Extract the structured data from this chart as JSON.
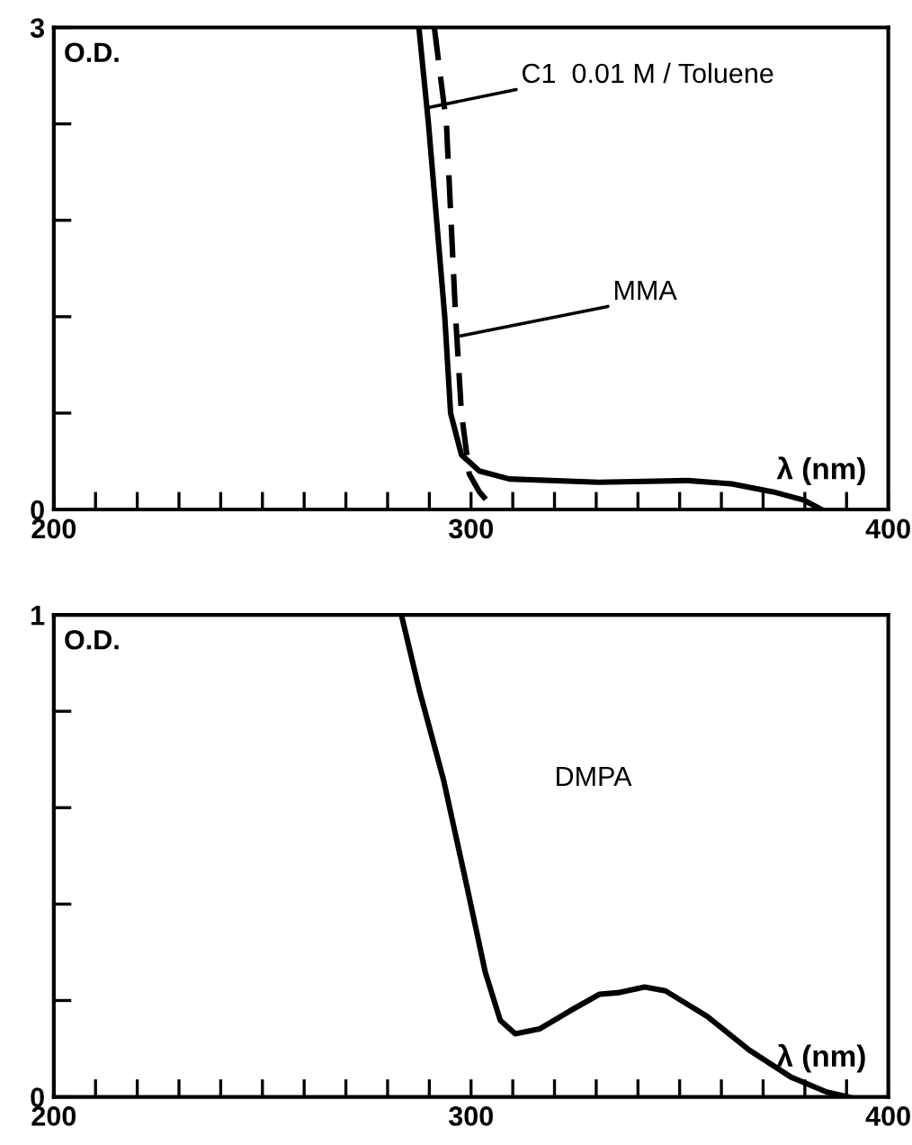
{
  "chart_data": [
    {
      "type": "line",
      "xlabel": "λ (nm)",
      "ylabel": "O.D.",
      "xlim": [
        200,
        400
      ],
      "ylim": [
        0,
        3
      ],
      "xticks": [
        200,
        {
          "value": 210,
          "label": null
        },
        {
          "value": 220,
          "label": null
        },
        {
          "value": 230,
          "label": null
        },
        {
          "value": 240,
          "label": null
        },
        {
          "value": 250,
          "label": null
        },
        {
          "value": 260,
          "label": null
        },
        {
          "value": 270,
          "label": null
        },
        {
          "value": 280,
          "label": null
        },
        {
          "value": 290,
          "label": null
        },
        300,
        {
          "value": 310,
          "label": null
        },
        {
          "value": 320,
          "label": null
        },
        {
          "value": 330,
          "label": null
        },
        {
          "value": 340,
          "label": null
        },
        {
          "value": 350,
          "label": null
        },
        {
          "value": 360,
          "label": null
        },
        {
          "value": 370,
          "label": null
        },
        {
          "value": 380,
          "label": null
        },
        {
          "value": 390,
          "label": null
        },
        400
      ],
      "yticks": [
        0,
        {
          "value": 0.6,
          "label": null
        },
        {
          "value": 1.2,
          "label": null
        },
        {
          "value": 1.8,
          "label": null
        },
        {
          "value": 2.4,
          "label": null
        },
        3
      ],
      "grid": false,
      "legend": false,
      "series": [
        {
          "color": "#000000",
          "line_style": "solid",
          "x": [
            287.5,
            289.8,
            293.7,
            295.1,
            297.7,
            302,
            309.2,
            330.6,
            352,
            362.4,
            372.4,
            379.6,
            384
          ],
          "values": [
            3,
            2.4,
            1.2,
            0.6,
            0.34,
            0.24,
            0.19,
            0.17,
            0.18,
            0.16,
            0.11,
            0.06,
            0
          ]
        },
        {
          "color": "#000000",
          "line_style": "dashed",
          "x": [
            291.2,
            294.1,
            296.3,
            297.7,
            299.6,
            302,
            305.6
          ],
          "values": [
            3,
            2.4,
            1.2,
            0.6,
            0.22,
            0.11,
            0
          ]
        }
      ],
      "annotations": [
        {
          "text": "C1  0.01 M / Toluene",
          "x": 289.5,
          "y": 2.5
        },
        {
          "text": "MMA",
          "x": 297.4,
          "y": 1.08
        }
      ]
    },
    {
      "type": "line",
      "xlabel": "λ (nm)",
      "ylabel": "O.D.",
      "xlim": [
        200,
        400
      ],
      "ylim": [
        0,
        1
      ],
      "xticks": [
        200,
        {
          "value": 210,
          "label": null
        },
        {
          "value": 220,
          "label": null
        },
        {
          "value": 230,
          "label": null
        },
        {
          "value": 240,
          "label": null
        },
        {
          "value": 250,
          "label": null
        },
        {
          "value": 260,
          "label": null
        },
        {
          "value": 270,
          "label": null
        },
        {
          "value": 280,
          "label": null
        },
        {
          "value": 290,
          "label": null
        },
        300,
        {
          "value": 310,
          "label": null
        },
        {
          "value": 320,
          "label": null
        },
        {
          "value": 330,
          "label": null
        },
        {
          "value": 340,
          "label": null
        },
        {
          "value": 350,
          "label": null
        },
        {
          "value": 360,
          "label": null
        },
        {
          "value": 370,
          "label": null
        },
        {
          "value": 380,
          "label": null
        },
        {
          "value": 390,
          "label": null
        },
        400
      ],
      "yticks": [
        0,
        {
          "value": 0.2,
          "label": null
        },
        {
          "value": 0.4,
          "label": null
        },
        {
          "value": 0.6,
          "label": null
        },
        {
          "value": 0.8,
          "label": null
        },
        1
      ],
      "grid": false,
      "legend": false,
      "series": [
        {
          "name": "DMPA",
          "color": "#000000",
          "line_style": "solid",
          "x": [
            283.3,
            287.6,
            293.4,
            299.1,
            303.4,
            307,
            310.6,
            316.4,
            323.6,
            330.8,
            335.1,
            341.6,
            346.6,
            356.6,
            366.7,
            376.7,
            385.3,
            390.4
          ],
          "values": [
            1,
            0.844,
            0.658,
            0.433,
            0.259,
            0.159,
            0.131,
            0.141,
            0.178,
            0.213,
            0.216,
            0.228,
            0.22,
            0.167,
            0.097,
            0.041,
            0.01,
            0
          ]
        }
      ]
    }
  ]
}
